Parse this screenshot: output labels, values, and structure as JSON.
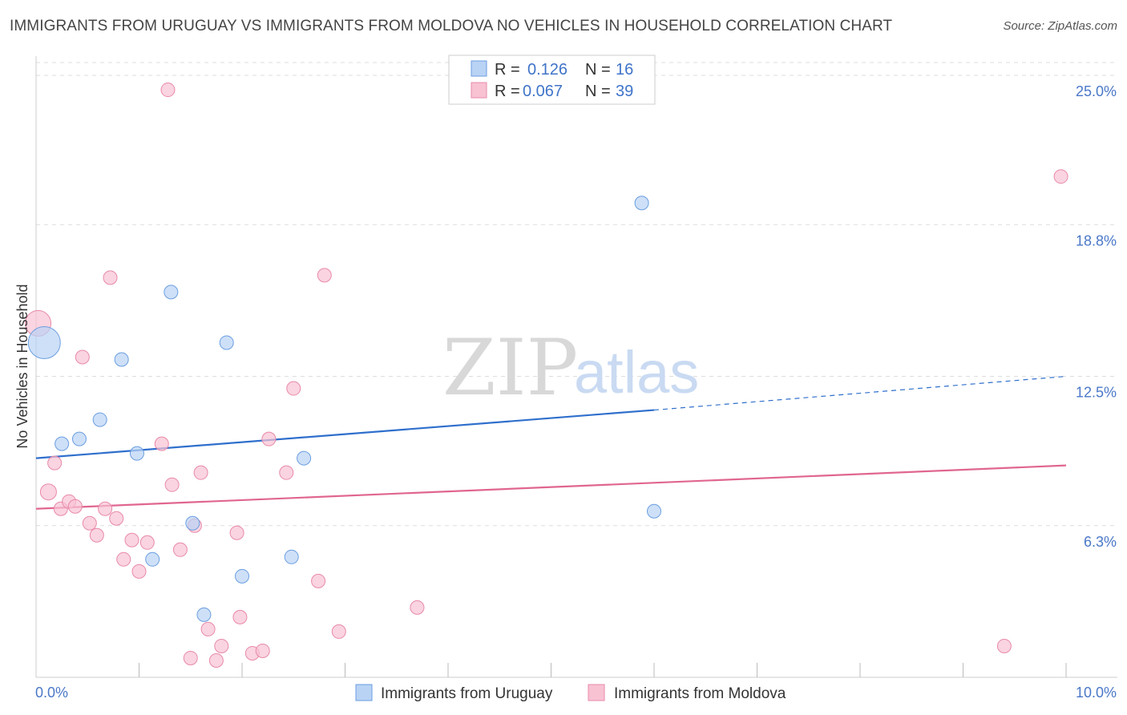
{
  "title": "IMMIGRANTS FROM URUGUAY VS IMMIGRANTS FROM MOLDOVA NO VEHICLES IN HOUSEHOLD CORRELATION CHART",
  "source": "Source: ZipAtlas.com",
  "watermark": {
    "zip": "ZIP",
    "atlas": "atlas"
  },
  "colors": {
    "uruguay_fill": "#b9d3f5",
    "uruguay_stroke": "#6b9ee0",
    "uruguay_line": "#2f6fcc",
    "moldova_fill": "#f8c2d3",
    "moldova_stroke": "#e88aa8",
    "moldova_line": "#e06690",
    "grid": "#dddddd",
    "axis_label": "#4a78c8"
  },
  "legend": {
    "rows": [
      {
        "r_label": "R =",
        "r_value": "0.126",
        "n_label": "N =",
        "n_value": "16"
      },
      {
        "r_label": "R =",
        "r_value": "0.067",
        "n_label": "N =",
        "n_value": "39"
      }
    ]
  },
  "chart_data": {
    "type": "scatter",
    "title": "IMMIGRANTS FROM URUGUAY VS IMMIGRANTS FROM MOLDOVA NO VEHICLES IN HOUSEHOLD CORRELATION CHART",
    "xlabel": "",
    "ylabel": "No Vehicles in Household",
    "xlim": [
      0,
      10
    ],
    "ylim": [
      0,
      25.8
    ],
    "x_tick_labels": [
      "0.0%",
      "10.0%"
    ],
    "y_ticks": [
      6.3,
      12.5,
      18.8,
      25.0
    ],
    "y_tick_labels": [
      "6.3%",
      "12.5%",
      "18.8%",
      "25.0%"
    ],
    "grid": true,
    "legend_position": "top-center",
    "series": [
      {
        "name": "Immigrants from Uruguay",
        "r": 0.126,
        "n": 16,
        "points": [
          {
            "x": 0.08,
            "y": 13.9,
            "s": 1.0
          },
          {
            "x": 0.25,
            "y": 9.7,
            "s": 0.45
          },
          {
            "x": 0.42,
            "y": 9.9,
            "s": 0.45
          },
          {
            "x": 0.62,
            "y": 10.7,
            "s": 0.45
          },
          {
            "x": 0.83,
            "y": 13.2,
            "s": 0.45
          },
          {
            "x": 0.98,
            "y": 9.3,
            "s": 0.45
          },
          {
            "x": 1.13,
            "y": 4.9,
            "s": 0.45
          },
          {
            "x": 1.31,
            "y": 16.0,
            "s": 0.45
          },
          {
            "x": 1.52,
            "y": 6.4,
            "s": 0.45
          },
          {
            "x": 1.63,
            "y": 2.6,
            "s": 0.45
          },
          {
            "x": 1.85,
            "y": 13.9,
            "s": 0.45
          },
          {
            "x": 2.0,
            "y": 4.2,
            "s": 0.45
          },
          {
            "x": 2.48,
            "y": 5.0,
            "s": 0.45
          },
          {
            "x": 2.6,
            "y": 9.1,
            "s": 0.45
          },
          {
            "x": 5.88,
            "y": 19.7,
            "s": 0.45
          },
          {
            "x": 6.0,
            "y": 6.9,
            "s": 0.45
          }
        ],
        "trend": {
          "x0": 0.0,
          "y0": 9.1,
          "x1": 6.0,
          "y1": 11.1,
          "dash_to_x": 10.0,
          "dash_to_y": 12.5
        }
      },
      {
        "name": "Immigrants from Moldova",
        "r": 0.067,
        "n": 39,
        "points": [
          {
            "x": 0.02,
            "y": 14.7,
            "s": 0.8
          },
          {
            "x": 0.12,
            "y": 7.7,
            "s": 0.5
          },
          {
            "x": 0.18,
            "y": 8.9,
            "s": 0.45
          },
          {
            "x": 0.24,
            "y": 7.0,
            "s": 0.45
          },
          {
            "x": 0.32,
            "y": 7.3,
            "s": 0.45
          },
          {
            "x": 0.38,
            "y": 7.1,
            "s": 0.45
          },
          {
            "x": 0.45,
            "y": 13.3,
            "s": 0.45
          },
          {
            "x": 0.52,
            "y": 6.4,
            "s": 0.45
          },
          {
            "x": 0.59,
            "y": 5.9,
            "s": 0.45
          },
          {
            "x": 0.67,
            "y": 7.0,
            "s": 0.45
          },
          {
            "x": 0.72,
            "y": 16.6,
            "s": 0.45
          },
          {
            "x": 0.78,
            "y": 6.6,
            "s": 0.45
          },
          {
            "x": 0.85,
            "y": 4.9,
            "s": 0.45
          },
          {
            "x": 0.93,
            "y": 5.7,
            "s": 0.45
          },
          {
            "x": 1.0,
            "y": 4.4,
            "s": 0.45
          },
          {
            "x": 1.08,
            "y": 5.6,
            "s": 0.45
          },
          {
            "x": 1.22,
            "y": 9.7,
            "s": 0.45
          },
          {
            "x": 1.28,
            "y": 24.4,
            "s": 0.45
          },
          {
            "x": 1.32,
            "y": 8.0,
            "s": 0.45
          },
          {
            "x": 1.4,
            "y": 5.3,
            "s": 0.45
          },
          {
            "x": 1.5,
            "y": 0.8,
            "s": 0.45
          },
          {
            "x": 1.54,
            "y": 6.3,
            "s": 0.45
          },
          {
            "x": 1.6,
            "y": 8.5,
            "s": 0.45
          },
          {
            "x": 1.67,
            "y": 2.0,
            "s": 0.45
          },
          {
            "x": 1.75,
            "y": 0.7,
            "s": 0.45
          },
          {
            "x": 1.8,
            "y": 1.3,
            "s": 0.45
          },
          {
            "x": 1.95,
            "y": 6.0,
            "s": 0.45
          },
          {
            "x": 1.98,
            "y": 2.5,
            "s": 0.45
          },
          {
            "x": 2.1,
            "y": 1.0,
            "s": 0.45
          },
          {
            "x": 2.2,
            "y": 1.1,
            "s": 0.45
          },
          {
            "x": 2.26,
            "y": 9.9,
            "s": 0.45
          },
          {
            "x": 2.43,
            "y": 8.5,
            "s": 0.45
          },
          {
            "x": 2.5,
            "y": 12.0,
            "s": 0.45
          },
          {
            "x": 2.74,
            "y": 4.0,
            "s": 0.45
          },
          {
            "x": 2.8,
            "y": 16.7,
            "s": 0.45
          },
          {
            "x": 2.94,
            "y": 1.9,
            "s": 0.45
          },
          {
            "x": 3.7,
            "y": 2.9,
            "s": 0.45
          },
          {
            "x": 9.4,
            "y": 1.3,
            "s": 0.45
          },
          {
            "x": 9.95,
            "y": 20.8,
            "s": 0.45
          }
        ],
        "trend": {
          "x0": 0.0,
          "y0": 7.0,
          "x1": 10.0,
          "y1": 8.8
        }
      }
    ]
  }
}
